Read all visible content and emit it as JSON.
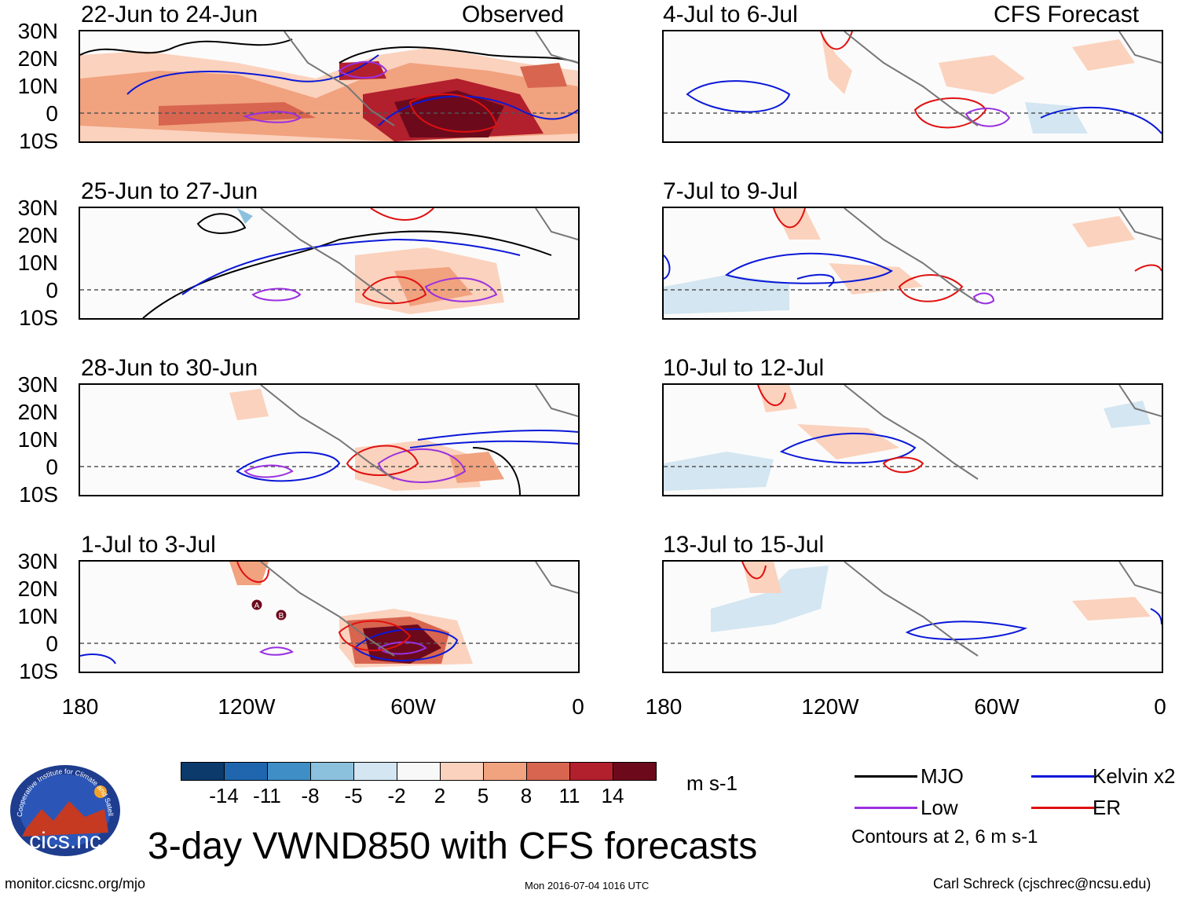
{
  "header": {
    "left_label": "Observed",
    "right_label": "CFS Forecast"
  },
  "panels": [
    {
      "title": "22-Jun to 24-Jun"
    },
    {
      "title": "25-Jun to 27-Jun"
    },
    {
      "title": "28-Jun to 30-Jun"
    },
    {
      "title": "1-Jul to 3-Jul"
    },
    {
      "title": "4-Jul to 6-Jul"
    },
    {
      "title": "7-Jul to 9-Jul"
    },
    {
      "title": "10-Jul to 12-Jul"
    },
    {
      "title": "13-Jul to 15-Jul"
    }
  ],
  "lat_labels": [
    "30N",
    "20N",
    "10N",
    "0",
    "10S"
  ],
  "lon_labels": [
    "180",
    "120W",
    "60W",
    "0"
  ],
  "storm_markers": [
    "A",
    "B"
  ],
  "colorbar": {
    "colors": [
      "#0b3a6b",
      "#1f66ae",
      "#3f8fc6",
      "#8cc1de",
      "#d3e6f1",
      "#f8f8f8",
      "#fbd2bd",
      "#f1a27f",
      "#d8654f",
      "#b21f2d",
      "#6c0a1c"
    ],
    "labels": [
      "-14",
      "-11",
      "-8",
      "-5",
      "-2",
      "2",
      "5",
      "8",
      "11",
      "14"
    ],
    "units": "m s-1"
  },
  "legend": {
    "items": [
      {
        "label": "MJO",
        "color": "#000000"
      },
      {
        "label": "Kelvin x2",
        "color": "#0a18d8"
      },
      {
        "label": "Low",
        "color": "#9a30e0"
      },
      {
        "label": "ER",
        "color": "#e01010"
      }
    ],
    "note": "Contours at 2, 6 m s-1"
  },
  "main_title": "3-day VWND850 with CFS forecasts",
  "logo_text": "cics.nc",
  "logo_ring_text": "Cooperative Institute for Climate and Satellites",
  "footer": {
    "left": "monitor.cicsnc.org/mjo",
    "center": "Mon 2016-07-04 1016 UTC",
    "right": "Carl Schreck (cjschrec@ncsu.edu)"
  }
}
